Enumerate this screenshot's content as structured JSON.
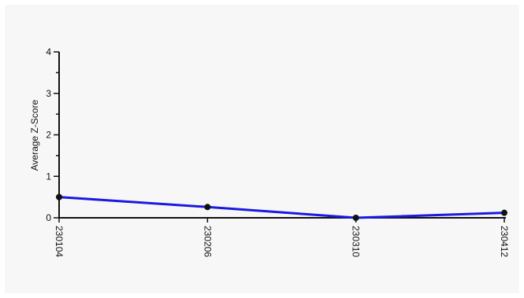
{
  "chart_data": {
    "type": "line",
    "title": "",
    "xlabel": "",
    "ylabel": "Average Z-Score",
    "categories": [
      "230104",
      "230206",
      "230310",
      "230412"
    ],
    "series": [
      {
        "values": [
          0.5,
          0.26,
          0.0,
          0.12
        ]
      }
    ],
    "ylim": [
      0,
      4
    ],
    "yticks": [
      0,
      1,
      2,
      3,
      4
    ],
    "grid": false,
    "legend": "none",
    "colors": {
      "line": "#1a1ae0",
      "marker": "#111111",
      "axis": "#111111",
      "background": "#f7f7f7"
    }
  }
}
